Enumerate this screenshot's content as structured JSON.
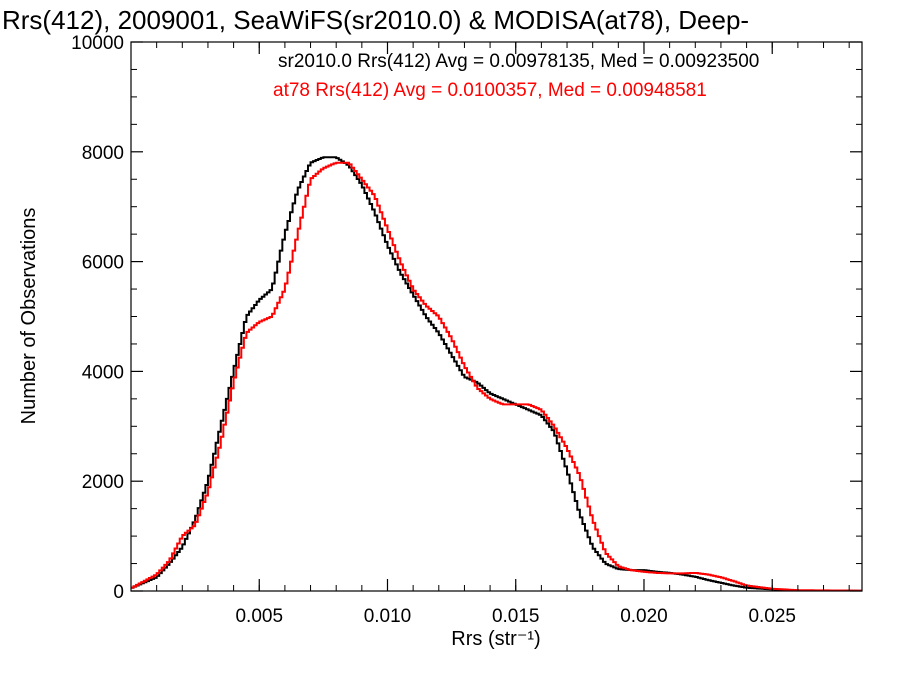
{
  "chart_data": {
    "type": "line",
    "title": "Rrs(412), 2009001, SeaWiFS(sr2010.0) & MODISA(at78), Deep-",
    "xlabel": "Rrs (str⁻¹)",
    "ylabel": "Number of Observations",
    "xlim": [
      0.0,
      0.0285
    ],
    "ylim": [
      0,
      10000
    ],
    "xticks": [
      0.005,
      0.01,
      0.015,
      0.02,
      0.025
    ],
    "xtick_labels": [
      "0.005",
      "0.010",
      "0.015",
      "0.020",
      "0.025"
    ],
    "yticks": [
      0,
      2000,
      4000,
      6000,
      8000,
      10000
    ],
    "ytick_labels": [
      "0",
      "2000",
      "4000",
      "6000",
      "8000",
      "10000"
    ],
    "grid": false,
    "legend_position": "top-right",
    "series": [
      {
        "label": "sr2010.0 Rrs(412) Avg = 0.00978135, Med = 0.00923500",
        "color": "#000000",
        "x": [
          0.0,
          0.001,
          0.0015,
          0.002,
          0.0025,
          0.003,
          0.0035,
          0.004,
          0.0045,
          0.005,
          0.0055,
          0.006,
          0.0065,
          0.007,
          0.0075,
          0.008,
          0.0085,
          0.009,
          0.0095,
          0.01,
          0.0105,
          0.011,
          0.0115,
          0.012,
          0.0125,
          0.013,
          0.0135,
          0.014,
          0.0145,
          0.015,
          0.0155,
          0.016,
          0.0165,
          0.017,
          0.0175,
          0.018,
          0.0185,
          0.019,
          0.0195,
          0.02,
          0.0205,
          0.021,
          0.0215,
          0.022,
          0.0225,
          0.023,
          0.0235,
          0.024,
          0.025,
          0.026,
          0.0285
        ],
        "y": [
          50,
          250,
          500,
          800,
          1300,
          2000,
          3000,
          4000,
          5000,
          5300,
          5500,
          6500,
          7300,
          7800,
          7900,
          7900,
          7750,
          7400,
          6900,
          6300,
          5800,
          5400,
          5000,
          4700,
          4300,
          3900,
          3800,
          3600,
          3500,
          3400,
          3300,
          3200,
          2900,
          2200,
          1400,
          800,
          500,
          400,
          380,
          380,
          350,
          330,
          300,
          260,
          200,
          150,
          100,
          60,
          30,
          10,
          5
        ]
      },
      {
        "label": "at78 Rrs(412) Avg = 0.0100357, Med = 0.00948581",
        "color": "#ff0000",
        "x": [
          0.0,
          0.001,
          0.0015,
          0.002,
          0.0025,
          0.003,
          0.0035,
          0.004,
          0.0045,
          0.005,
          0.0055,
          0.006,
          0.0065,
          0.007,
          0.0075,
          0.008,
          0.0085,
          0.009,
          0.0095,
          0.01,
          0.0105,
          0.011,
          0.0115,
          0.012,
          0.0125,
          0.013,
          0.0135,
          0.014,
          0.0145,
          0.015,
          0.0155,
          0.016,
          0.0165,
          0.017,
          0.0175,
          0.018,
          0.0185,
          0.019,
          0.0195,
          0.02,
          0.0205,
          0.021,
          0.0215,
          0.022,
          0.0225,
          0.023,
          0.0235,
          0.024,
          0.025,
          0.026,
          0.0285
        ],
        "y": [
          50,
          300,
          550,
          1000,
          1200,
          1800,
          2700,
          3800,
          4700,
          4900,
          5000,
          5500,
          6500,
          7500,
          7700,
          7800,
          7800,
          7500,
          7200,
          6600,
          6000,
          5500,
          5200,
          5000,
          4600,
          4100,
          3700,
          3500,
          3400,
          3400,
          3400,
          3300,
          3000,
          2600,
          2100,
          1300,
          700,
          450,
          380,
          350,
          330,
          320,
          320,
          330,
          300,
          250,
          180,
          100,
          40,
          15,
          5
        ]
      }
    ]
  }
}
